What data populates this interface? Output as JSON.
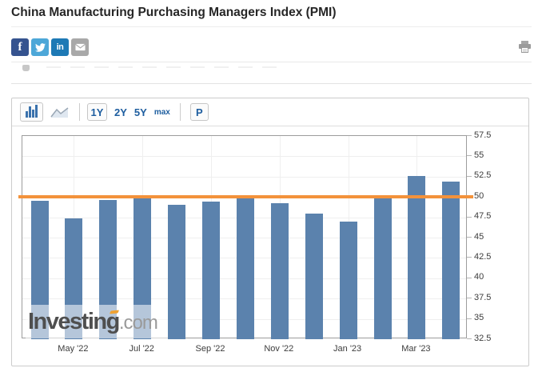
{
  "header": {
    "title": "China Manufacturing Purchasing Managers Index (PMI)"
  },
  "share": {
    "facebook_glyph": "f",
    "linkedin_glyph": "in",
    "colors": {
      "facebook": "#35538f",
      "twitter": "#4da7d8",
      "linkedin": "#1d79b5",
      "email": "#a8a8a8"
    }
  },
  "toolbar": {
    "chart_types": [
      {
        "name": "bar-chart",
        "selected": true
      },
      {
        "name": "line-chart",
        "selected": false
      }
    ],
    "ranges": [
      {
        "label": "1Y",
        "selected": true
      },
      {
        "label": "2Y",
        "selected": false
      },
      {
        "label": "5Y",
        "selected": false
      },
      {
        "label": "max",
        "selected": false
      }
    ],
    "p_label": "P"
  },
  "chart_data": {
    "type": "bar",
    "title": "China Manufacturing PMI, monthly",
    "values": [
      49.5,
      47.4,
      49.6,
      50.2,
      49.0,
      49.4,
      50.1,
      49.2,
      48.0,
      47.0,
      50.1,
      52.6,
      51.9
    ],
    "ylim": [
      32.5,
      57.5
    ],
    "y_tick_step": 2.5,
    "y_tick_labels": [
      "57.5",
      "55",
      "52.5",
      "50",
      "47.5",
      "45",
      "42.5",
      "40",
      "37.5",
      "35",
      "32.5"
    ],
    "x_tick_labels": [
      "May '22",
      "Jul '22",
      "Sep '22",
      "Nov '22",
      "Jan '23",
      "Mar '23"
    ],
    "x_tick_bar_indices": [
      1,
      3,
      5,
      7,
      9,
      11
    ],
    "threshold_value": 50,
    "grid": true,
    "legend": null,
    "colors": {
      "bar": "#5b82ad",
      "threshold": "#f3923b",
      "grid": "#efefef",
      "plot_border": "#9c9c9c",
      "axis_text": "#3c3c3c"
    }
  },
  "watermark": {
    "main": "Investing",
    "suffix": ".com",
    "accent_color": "#f0a232"
  }
}
